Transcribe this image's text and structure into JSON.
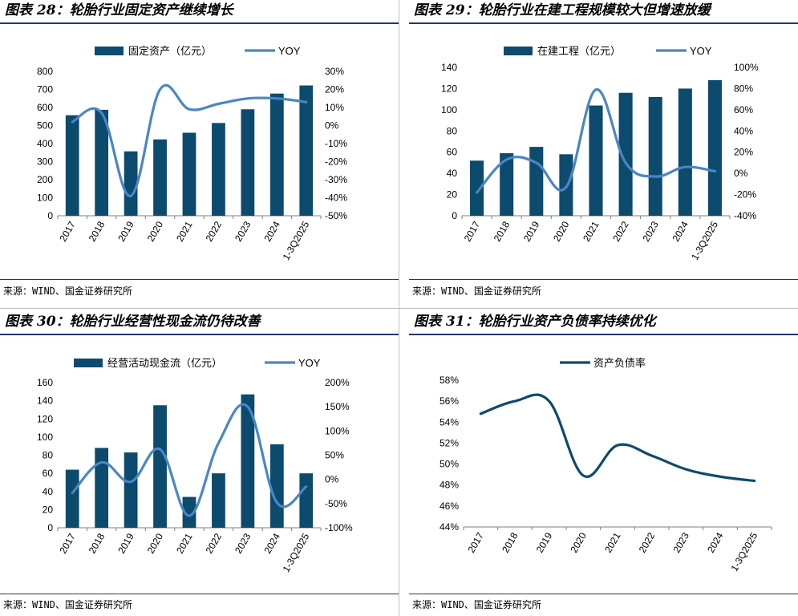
{
  "colors": {
    "bar": "#0c4a6e",
    "line": "#4a86c5",
    "rule": "#1a3a6b"
  },
  "panels": [
    {
      "title": "图表 28：轮胎行业固定资产继续增长",
      "source": "来源：WIND、国金证券研究所",
      "chart_data": {
        "type": "bar+line",
        "categories": [
          "2017",
          "2018",
          "2019",
          "2020",
          "2021",
          "2022",
          "2023",
          "2024",
          "1-3Q2025"
        ],
        "series": [
          {
            "name": "固定资产（亿元）",
            "type": "bar",
            "axis": "left",
            "values": [
              557,
              587,
              357,
              423,
              460,
              514,
              590,
              677,
              722
            ]
          },
          {
            "name": "YOY",
            "type": "line",
            "axis": "right",
            "values": [
              2,
              7,
              -39,
              20,
              9,
              12,
              15,
              15,
              13
            ]
          }
        ],
        "left_axis": {
          "min": 0,
          "max": 800,
          "step": 100,
          "ticks": [
            "0",
            "100",
            "200",
            "300",
            "400",
            "500",
            "600",
            "700",
            "800"
          ]
        },
        "right_axis": {
          "min": -50,
          "max": 30,
          "step": 10,
          "ticks": [
            "-50%",
            "-40%",
            "-30%",
            "-20%",
            "-10%",
            "0%",
            "10%",
            "20%",
            "30%"
          ]
        },
        "legend": [
          "固定资产（亿元）",
          "YOY"
        ]
      }
    },
    {
      "title": "图表 29：轮胎行业在建工程规模较大但增速放缓",
      "source": "来源：WIND、国金证券研究所",
      "chart_data": {
        "type": "bar+line",
        "categories": [
          "2017",
          "2018",
          "2019",
          "2020",
          "2021",
          "2022",
          "2023",
          "2024",
          "1-3Q2025"
        ],
        "series": [
          {
            "name": "在建工程（亿元）",
            "type": "bar",
            "axis": "left",
            "values": [
              52,
              59,
              65,
              58,
              104,
              116,
              112,
              120,
              128
            ]
          },
          {
            "name": "YOY",
            "type": "line",
            "axis": "right",
            "values": [
              -18,
              13,
              10,
              -13,
              79,
              10,
              -3,
              6,
              2
            ]
          }
        ],
        "left_axis": {
          "min": 0,
          "max": 140,
          "step": 20,
          "ticks": [
            "0",
            "20",
            "40",
            "60",
            "80",
            "100",
            "120",
            "140"
          ]
        },
        "right_axis": {
          "min": -40,
          "max": 100,
          "step": 20,
          "ticks": [
            "-40%",
            "-20%",
            "0%",
            "20%",
            "40%",
            "60%",
            "80%",
            "100%"
          ]
        },
        "legend": [
          "在建工程（亿元）",
          "YOY"
        ]
      }
    },
    {
      "title": "图表 30：轮胎行业经营性现金流仍待改善",
      "source": "来源：WIND、国金证券研究所",
      "chart_data": {
        "type": "bar+line",
        "categories": [
          "2017",
          "2018",
          "2019",
          "2020",
          "2021",
          "2022",
          "2023",
          "2024",
          "1-3Q2025"
        ],
        "series": [
          {
            "name": "经营活动现金流（亿元）",
            "type": "bar",
            "axis": "left",
            "values": [
              64,
              88,
              83,
              135,
              34,
              60,
              147,
              92,
              60
            ]
          },
          {
            "name": "YOY",
            "type": "line",
            "axis": "right",
            "values": [
              -28,
              35,
              -5,
              62,
              -75,
              75,
              150,
              -48,
              -15
            ]
          }
        ],
        "left_axis": {
          "min": 0,
          "max": 160,
          "step": 20,
          "ticks": [
            "0",
            "20",
            "40",
            "60",
            "80",
            "100",
            "120",
            "140",
            "160"
          ]
        },
        "right_axis": {
          "min": -100,
          "max": 200,
          "step": 50,
          "ticks": [
            "-100%",
            "-50%",
            "0%",
            "50%",
            "100%",
            "150%",
            "200%"
          ]
        },
        "legend": [
          "经营活动现金流（亿元）",
          "YOY"
        ]
      }
    },
    {
      "title": "图表 31：轮胎行业资产负债率持续优化",
      "source": "来源：WIND、国金证券研究所",
      "chart_data": {
        "type": "line",
        "categories": [
          "2017",
          "2018",
          "2019",
          "2020",
          "2021",
          "2022",
          "2023",
          "2024",
          "1-3Q2025"
        ],
        "series": [
          {
            "name": "资产负债率",
            "type": "line",
            "axis": "left",
            "values": [
              54.8,
              56.0,
              56.0,
              48.9,
              51.8,
              50.8,
              49.5,
              48.8,
              48.4
            ]
          }
        ],
        "left_axis": {
          "min": 44,
          "max": 58,
          "step": 2,
          "ticks": [
            "44%",
            "46%",
            "48%",
            "50%",
            "52%",
            "54%",
            "56%",
            "58%"
          ]
        },
        "legend": [
          "资产负债率"
        ]
      }
    }
  ]
}
